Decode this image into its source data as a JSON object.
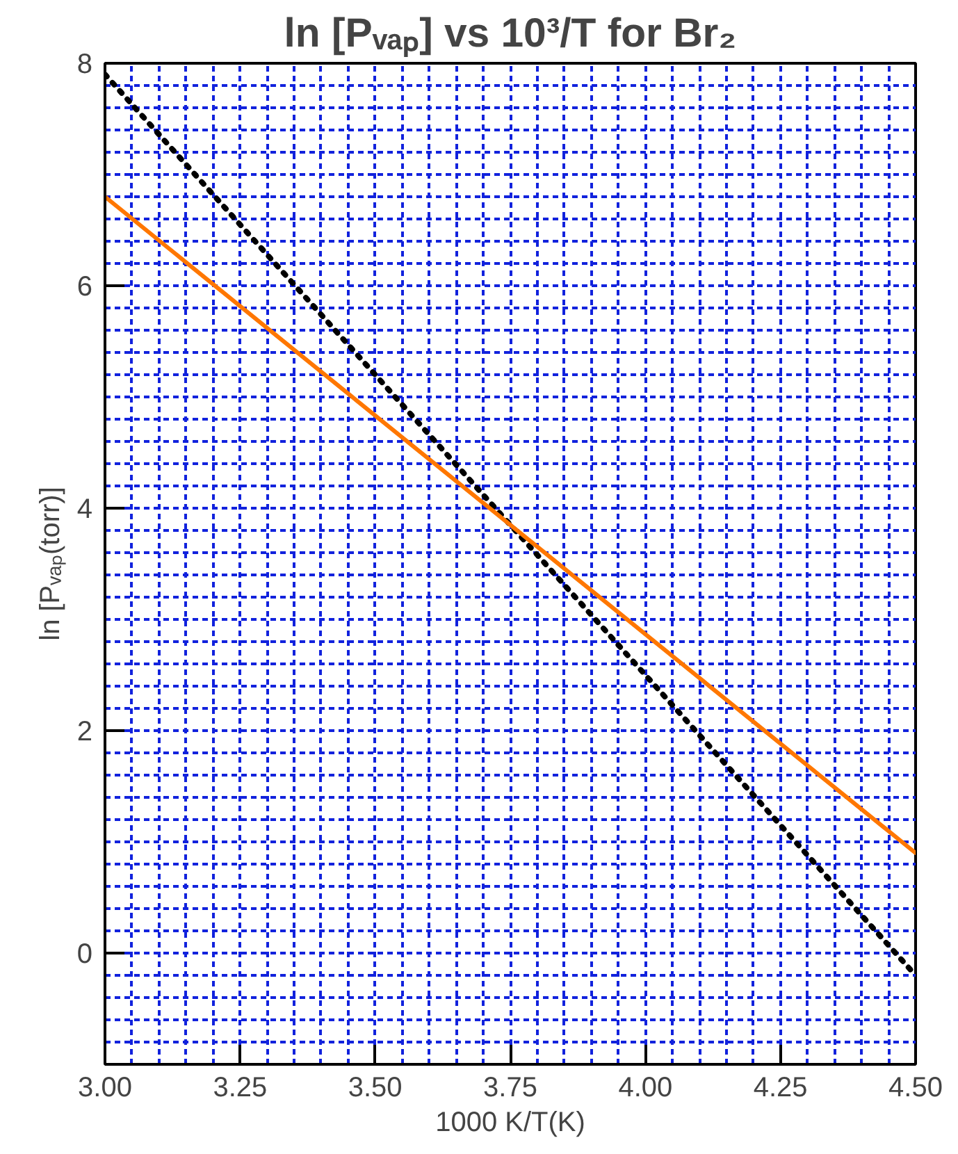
{
  "chart_data": {
    "type": "line",
    "title": "ln [Pᵥₐₚ] vs 10³/T for Br₂",
    "xlabel": "1000 K/T(K)",
    "ylabel": "ln [Pᵥₐₚ(torr)]",
    "xlim": [
      3.0,
      4.5
    ],
    "ylim": [
      -1,
      8
    ],
    "xticks": [
      {
        "value": 3.0,
        "label": "3.00"
      },
      {
        "value": 3.25,
        "label": "3.25"
      },
      {
        "value": 3.5,
        "label": "3.50"
      },
      {
        "value": 3.75,
        "label": "3.75"
      },
      {
        "value": 4.0,
        "label": "4.00"
      },
      {
        "value": 4.25,
        "label": "4.25"
      },
      {
        "value": 4.5,
        "label": "4.50"
      }
    ],
    "yticks": [
      0,
      2,
      4,
      6,
      8
    ],
    "grid": true,
    "marker": "none",
    "x": [
      3.0,
      4.5
    ],
    "series": [
      {
        "values": [
          7.9,
          -0.2
        ],
        "color": "#000000",
        "line_style": "dotted"
      },
      {
        "values": [
          6.8,
          0.9
        ],
        "color": "#ff7700",
        "line_style": "solid"
      }
    ]
  }
}
